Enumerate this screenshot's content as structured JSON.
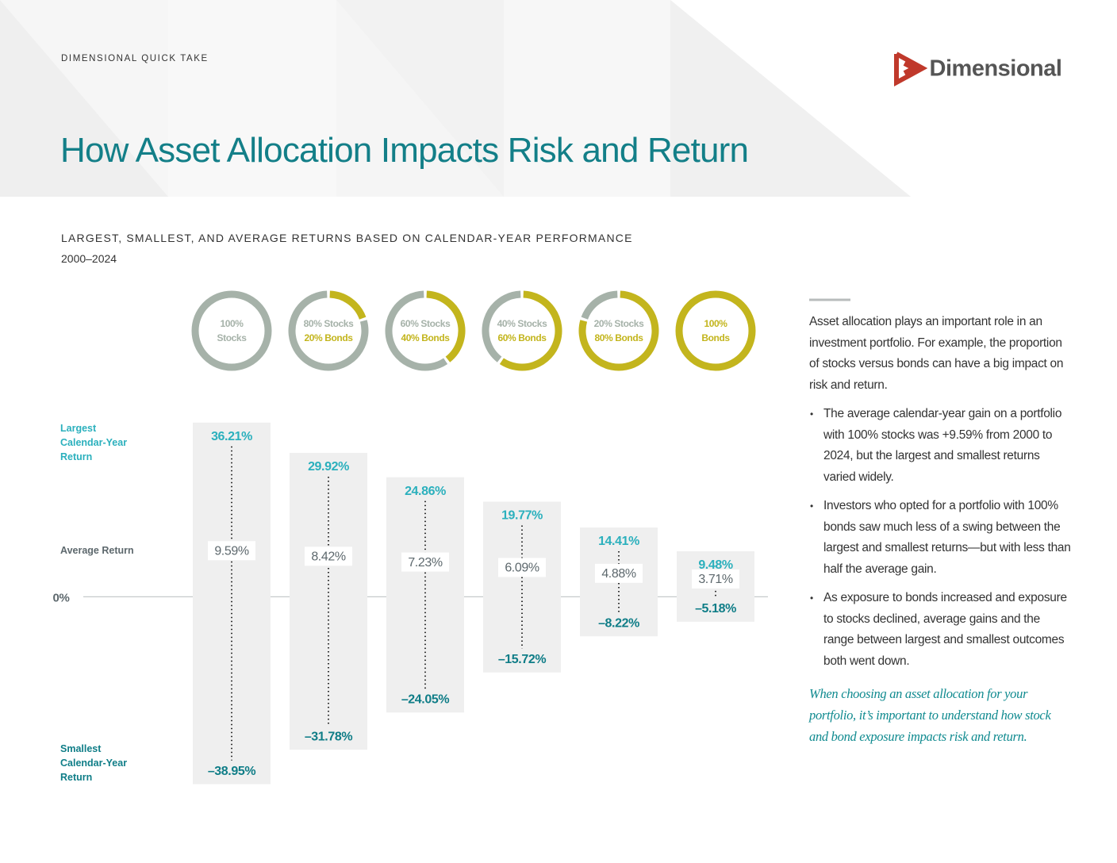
{
  "header": {
    "kicker": "DIMENSIONAL QUICK TAKE",
    "brand": "Dimensional",
    "title": "How Asset Allocation Impacts Risk and Return"
  },
  "chart_data": {
    "type": "range",
    "title": "LARGEST, SMALLEST, AND AVERAGE RETURNS BASED ON CALENDAR-YEAR PERFORMANCE",
    "subtitle": "2000–2024",
    "categories": [
      [
        "100%",
        "Stocks"
      ],
      [
        "80% Stocks",
        "20% Bonds"
      ],
      [
        "60% Stocks",
        "40% Bonds"
      ],
      [
        "40% Stocks",
        "60% Bonds"
      ],
      [
        "20% Stocks",
        "80% Bonds"
      ],
      [
        "100%",
        "Bonds"
      ]
    ],
    "stock_share": [
      100,
      80,
      60,
      40,
      20,
      0
    ],
    "bond_share": [
      0,
      20,
      40,
      60,
      80,
      100
    ],
    "stock_color": "#a6b2a9",
    "bond_color": "#c3b51d",
    "range_color": "#efefef",
    "series": [
      {
        "name": "Largest Calendar-Year Return",
        "color": "#2bb0bd",
        "values": [
          36.21,
          29.92,
          24.86,
          19.77,
          14.41,
          9.48
        ],
        "value_labels": [
          "36.21%",
          "29.92%",
          "24.86%",
          "19.77%",
          "14.41%",
          "9.48%"
        ]
      },
      {
        "name": "Average Return",
        "color": "#5d686d",
        "values": [
          9.59,
          8.42,
          7.23,
          6.09,
          4.88,
          3.71
        ],
        "value_labels": [
          "9.59%",
          "8.42%",
          "7.23%",
          "6.09%",
          "4.88%",
          "3.71%"
        ]
      },
      {
        "name": "Smallest Calendar-Year Return",
        "color": "#0f7d87",
        "values": [
          -38.95,
          -31.78,
          -24.05,
          -15.72,
          -8.22,
          -5.18
        ],
        "value_labels": [
          "–38.95%",
          "–31.78%",
          "–24.05%",
          "–15.72%",
          "–8.22%",
          "–5.18%"
        ]
      }
    ],
    "ylim": [
      -40,
      37
    ],
    "yticks": [
      {
        "value": 0,
        "label": "0%"
      }
    ]
  },
  "sidebar": {
    "intro": "Asset allocation plays an important role in an investment portfolio. For example, the proportion of stocks versus bonds can have a big impact on risk and return.",
    "bullets": [
      "The average calendar-year gain on a portfolio with 100% stocks was +9.59% from 2000 to 2024, but the largest and smallest returns varied widely.",
      "Investors who opted for a portfolio with 100% bonds saw much less of a swing between the largest and smallest returns—but with less than half the average gain.",
      "As exposure to bonds increased and exposure to stocks declined, average gains and the range between largest and smallest outcomes both went down."
    ],
    "closing": "When choosing an asset allocation for your portfolio, it’s important to understand how stock and bond exposure impacts risk and return."
  }
}
